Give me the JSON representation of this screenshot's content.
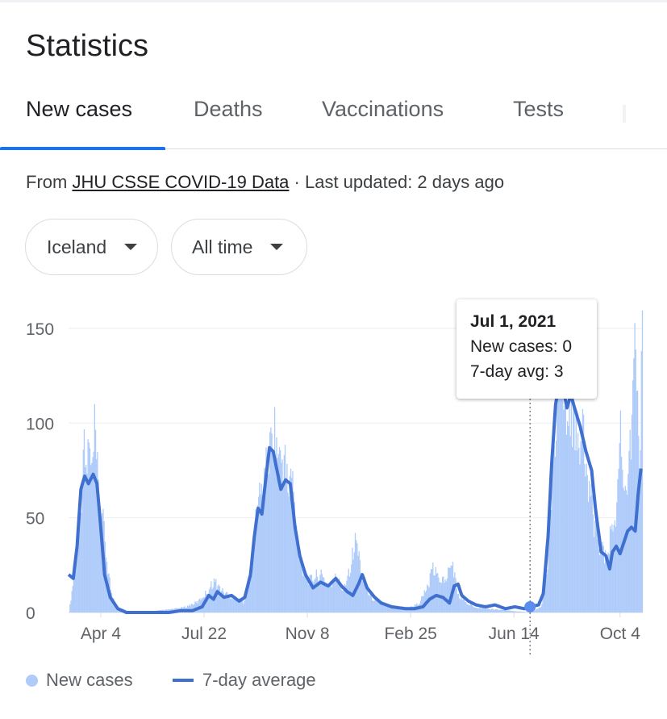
{
  "title": "Statistics",
  "tabs": [
    {
      "label": "New cases",
      "active": true
    },
    {
      "label": "Deaths",
      "active": false
    },
    {
      "label": "Vaccinations",
      "active": false
    },
    {
      "label": "Tests",
      "active": false
    }
  ],
  "source": {
    "prefix": "From ",
    "link": "JHU CSSE COVID-19 Data",
    "suffix": " · Last updated: 2 days ago"
  },
  "filters": {
    "location": "Iceland",
    "range": "All time"
  },
  "tooltip": {
    "date": "Jul 1, 2021",
    "new_cases": "New cases: 0",
    "avg": "7-day avg: 3"
  },
  "legend": {
    "new_cases": "New cases",
    "avg": "7-day average"
  },
  "colors": {
    "bars": "#aecbfa",
    "line": "#3f6fcf",
    "accent": "#1a73e8"
  },
  "chart_data": {
    "type": "bar",
    "ylim": [
      0,
      170
    ],
    "y_ticks": [
      0,
      50,
      100,
      150
    ],
    "x_ticks": [
      "Apr 4",
      "Jul 22",
      "Nov 8",
      "Feb 25",
      "Jun 14",
      "Oct 4"
    ],
    "grid": true,
    "legend_position": "bottom-left",
    "highlight": {
      "date": "Jul 1, 2021",
      "new_cases": 0,
      "avg": 3
    },
    "series": [
      {
        "name": "New cases",
        "style": "bars",
        "points": [
          [
            "2020-03-01",
            0
          ],
          [
            "2020-03-06",
            20
          ],
          [
            "2020-03-10",
            45
          ],
          [
            "2020-03-14",
            70
          ],
          [
            "2020-03-16",
            95
          ],
          [
            "2020-03-19",
            80
          ],
          [
            "2020-03-22",
            95
          ],
          [
            "2020-03-25",
            75
          ],
          [
            "2020-03-28",
            100
          ],
          [
            "2020-04-01",
            70
          ],
          [
            "2020-04-05",
            55
          ],
          [
            "2020-04-10",
            30
          ],
          [
            "2020-04-15",
            10
          ],
          [
            "2020-04-22",
            3
          ],
          [
            "2020-05-01",
            1
          ],
          [
            "2020-05-15",
            0
          ],
          [
            "2020-06-01",
            1
          ],
          [
            "2020-06-20",
            2
          ],
          [
            "2020-07-01",
            3
          ],
          [
            "2020-07-15",
            6
          ],
          [
            "2020-07-25",
            12
          ],
          [
            "2020-08-01",
            18
          ],
          [
            "2020-08-10",
            12
          ],
          [
            "2020-08-20",
            9
          ],
          [
            "2020-09-01",
            6
          ],
          [
            "2020-09-10",
            25
          ],
          [
            "2020-09-15",
            60
          ],
          [
            "2020-09-20",
            70
          ],
          [
            "2020-09-25",
            80
          ],
          [
            "2020-09-30",
            95
          ],
          [
            "2020-10-03",
            106
          ],
          [
            "2020-10-06",
            95
          ],
          [
            "2020-10-10",
            85
          ],
          [
            "2020-10-14",
            90
          ],
          [
            "2020-10-18",
            70
          ],
          [
            "2020-10-22",
            80
          ],
          [
            "2020-10-28",
            40
          ],
          [
            "2020-11-03",
            25
          ],
          [
            "2020-11-10",
            18
          ],
          [
            "2020-11-20",
            22
          ],
          [
            "2020-12-01",
            15
          ],
          [
            "2020-12-08",
            20
          ],
          [
            "2020-12-15",
            13
          ],
          [
            "2020-12-22",
            25
          ],
          [
            "2020-12-29",
            42
          ],
          [
            "2021-01-05",
            18
          ],
          [
            "2021-01-15",
            8
          ],
          [
            "2021-02-01",
            4
          ],
          [
            "2021-02-20",
            2
          ],
          [
            "2021-03-05",
            5
          ],
          [
            "2021-03-15",
            15
          ],
          [
            "2021-03-20",
            25
          ],
          [
            "2021-03-25",
            20
          ],
          [
            "2021-04-01",
            18
          ],
          [
            "2021-04-10",
            28
          ],
          [
            "2021-04-15",
            10
          ],
          [
            "2021-04-25",
            5
          ],
          [
            "2021-05-05",
            3
          ],
          [
            "2021-05-20",
            2
          ],
          [
            "2021-06-10",
            1
          ],
          [
            "2021-07-01",
            0
          ],
          [
            "2021-07-12",
            3
          ],
          [
            "2021-07-18",
            20
          ],
          [
            "2021-07-22",
            50
          ],
          [
            "2021-07-25",
            85
          ],
          [
            "2021-07-28",
            115
          ],
          [
            "2021-07-31",
            130
          ],
          [
            "2021-08-04",
            125
          ],
          [
            "2021-08-08",
            110
          ],
          [
            "2021-08-12",
            120
          ],
          [
            "2021-08-18",
            95
          ],
          [
            "2021-08-24",
            105
          ],
          [
            "2021-08-30",
            75
          ],
          [
            "2021-09-05",
            55
          ],
          [
            "2021-09-12",
            40
          ],
          [
            "2021-09-18",
            30
          ],
          [
            "2021-09-24",
            45
          ],
          [
            "2021-09-30",
            55
          ],
          [
            "2021-10-04",
            118
          ],
          [
            "2021-10-08",
            60
          ],
          [
            "2021-10-12",
            90
          ],
          [
            "2021-10-16",
            100
          ],
          [
            "2021-10-20",
            158
          ],
          [
            "2021-10-24",
            80
          ],
          [
            "2021-10-27",
            170
          ]
        ]
      },
      {
        "name": "7-day average",
        "style": "line",
        "points": [
          [
            "2020-03-01",
            20
          ],
          [
            "2020-03-06",
            18
          ],
          [
            "2020-03-10",
            35
          ],
          [
            "2020-03-14",
            65
          ],
          [
            "2020-03-18",
            72
          ],
          [
            "2020-03-22",
            68
          ],
          [
            "2020-03-27",
            73
          ],
          [
            "2020-03-31",
            68
          ],
          [
            "2020-04-04",
            45
          ],
          [
            "2020-04-08",
            20
          ],
          [
            "2020-04-14",
            8
          ],
          [
            "2020-04-22",
            2
          ],
          [
            "2020-05-01",
            0
          ],
          [
            "2020-05-15",
            0
          ],
          [
            "2020-06-01",
            0
          ],
          [
            "2020-06-15",
            0
          ],
          [
            "2020-06-28",
            1
          ],
          [
            "2020-07-10",
            1
          ],
          [
            "2020-07-20",
            3
          ],
          [
            "2020-07-27",
            9
          ],
          [
            "2020-08-01",
            7
          ],
          [
            "2020-08-05",
            11
          ],
          [
            "2020-08-12",
            8
          ],
          [
            "2020-08-20",
            9
          ],
          [
            "2020-08-28",
            6
          ],
          [
            "2020-09-03",
            8
          ],
          [
            "2020-09-09",
            20
          ],
          [
            "2020-09-13",
            40
          ],
          [
            "2020-09-17",
            55
          ],
          [
            "2020-09-21",
            52
          ],
          [
            "2020-09-25",
            70
          ],
          [
            "2020-09-29",
            87
          ],
          [
            "2020-10-03",
            85
          ],
          [
            "2020-10-07",
            75
          ],
          [
            "2020-10-11",
            65
          ],
          [
            "2020-10-16",
            70
          ],
          [
            "2020-10-21",
            68
          ],
          [
            "2020-10-26",
            45
          ],
          [
            "2020-10-31",
            30
          ],
          [
            "2020-11-06",
            20
          ],
          [
            "2020-11-14",
            13
          ],
          [
            "2020-11-22",
            16
          ],
          [
            "2020-11-30",
            14
          ],
          [
            "2020-12-08",
            18
          ],
          [
            "2020-12-14",
            14
          ],
          [
            "2020-12-20",
            11
          ],
          [
            "2020-12-26",
            9
          ],
          [
            "2021-01-01",
            15
          ],
          [
            "2021-01-05",
            20
          ],
          [
            "2021-01-10",
            13
          ],
          [
            "2021-01-18",
            8
          ],
          [
            "2021-01-25",
            5
          ],
          [
            "2021-02-05",
            3
          ],
          [
            "2021-02-20",
            2
          ],
          [
            "2021-03-01",
            2
          ],
          [
            "2021-03-10",
            3
          ],
          [
            "2021-03-17",
            7
          ],
          [
            "2021-03-24",
            9
          ],
          [
            "2021-03-31",
            8
          ],
          [
            "2021-04-07",
            5
          ],
          [
            "2021-04-12",
            14
          ],
          [
            "2021-04-16",
            15
          ],
          [
            "2021-04-20",
            9
          ],
          [
            "2021-04-27",
            6
          ],
          [
            "2021-05-05",
            4
          ],
          [
            "2021-05-15",
            3
          ],
          [
            "2021-05-25",
            4
          ],
          [
            "2021-06-05",
            2
          ],
          [
            "2021-06-15",
            3
          ],
          [
            "2021-06-25",
            2
          ],
          [
            "2021-07-01",
            3
          ],
          [
            "2021-07-10",
            4
          ],
          [
            "2021-07-15",
            10
          ],
          [
            "2021-07-20",
            40
          ],
          [
            "2021-07-24",
            80
          ],
          [
            "2021-07-28",
            110
          ],
          [
            "2021-08-01",
            122
          ],
          [
            "2021-08-05",
            118
          ],
          [
            "2021-08-09",
            108
          ],
          [
            "2021-08-13",
            115
          ],
          [
            "2021-08-17",
            108
          ],
          [
            "2021-08-23",
            98
          ],
          [
            "2021-08-29",
            85
          ],
          [
            "2021-09-04",
            75
          ],
          [
            "2021-09-08",
            55
          ],
          [
            "2021-09-14",
            32
          ],
          [
            "2021-09-19",
            30
          ],
          [
            "2021-09-23",
            23
          ],
          [
            "2021-09-26",
            32
          ],
          [
            "2021-09-30",
            35
          ],
          [
            "2021-10-04",
            31
          ],
          [
            "2021-10-08",
            37
          ],
          [
            "2021-10-12",
            43
          ],
          [
            "2021-10-16",
            45
          ],
          [
            "2021-10-20",
            43
          ],
          [
            "2021-10-23",
            62
          ],
          [
            "2021-10-26",
            76
          ]
        ]
      }
    ]
  }
}
